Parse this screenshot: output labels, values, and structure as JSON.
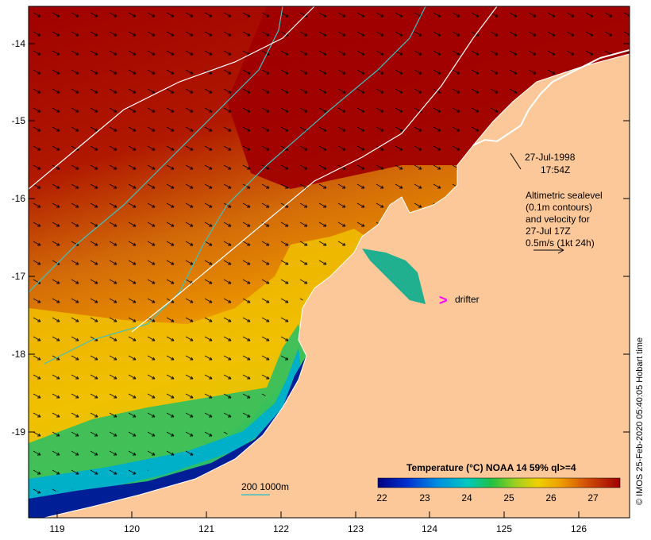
{
  "map": {
    "date": "27-Jul-1998",
    "time": "17:54Z",
    "altimetry_lines": [
      "Altimetric sealevel",
      "(0.1m contours)",
      "and velocity for",
      "27-Jul 17Z",
      "0.5m/s (1kt 24h)"
    ],
    "drifter_label": "drifter",
    "drifter_symbol": ">",
    "depth_legend": "200  1000m",
    "colorbar_title": "Temperature (°C) NOAA 14 59% ql>=4",
    "colorbar_ticks": [
      "22",
      "23",
      "24",
      "25",
      "26",
      "27"
    ],
    "lon_ticks": [
      "119",
      "120",
      "121",
      "122",
      "123",
      "124",
      "125",
      "126"
    ],
    "lat_ticks": [
      "-14",
      "-15",
      "-16",
      "-17",
      "-18",
      "-19"
    ],
    "credit": "© IMOS 25-Feb-2020 05:40:05 Hobart time",
    "colors": {
      "land": "#fcc899",
      "warm": "#a00000",
      "orange": "#d26a08",
      "yellow": "#f0c800",
      "green": "#30c060",
      "cyan": "#00b4c8",
      "cold": "#001e96",
      "depth_200_contour": "#40c0c0",
      "depth_1000_contour": "#ffffff",
      "drifter": "#ff00ff"
    }
  }
}
